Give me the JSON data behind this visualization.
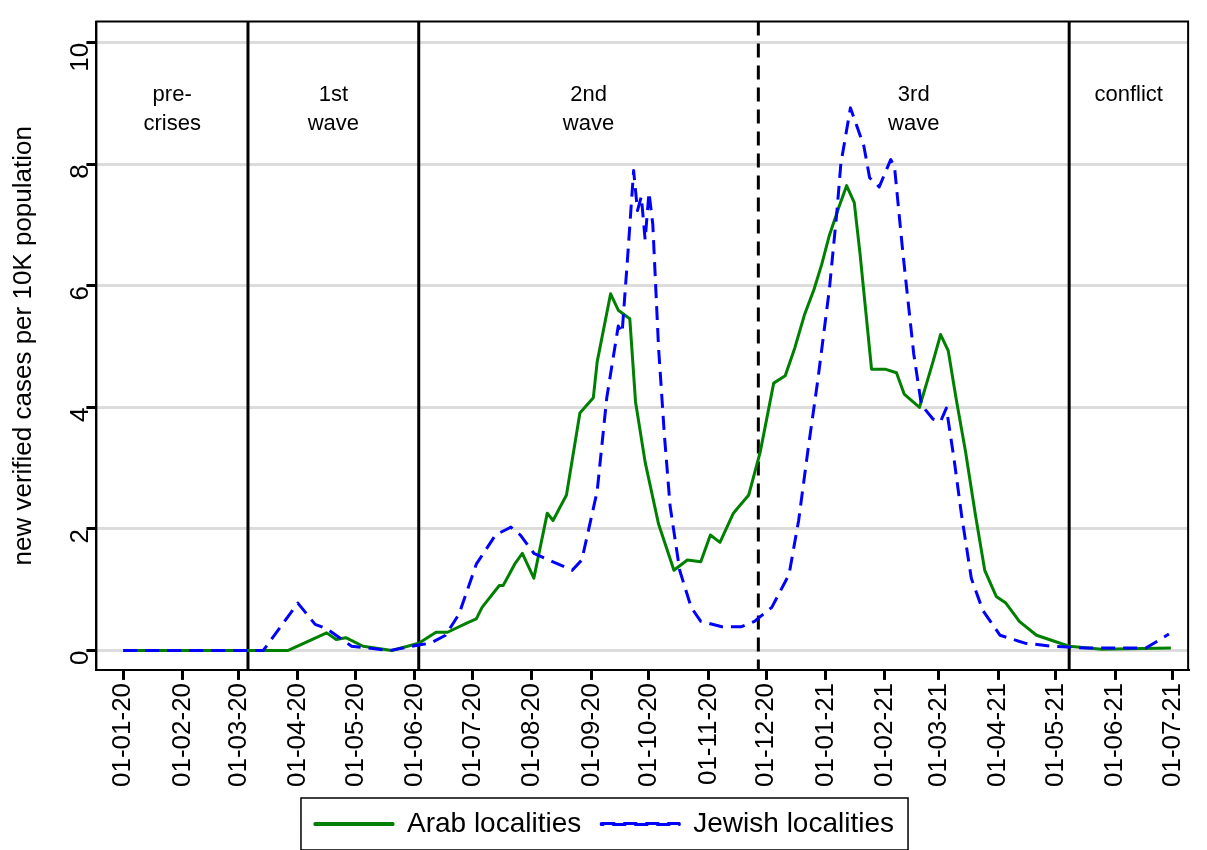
{
  "chart_data": {
    "type": "line",
    "ylabel": "new verified cases per 10K population",
    "xlim": [
      "2019-12-18",
      "2021-07-09"
    ],
    "xticks": [
      {
        "value": "2020-01-01",
        "label": "01-01-20"
      },
      {
        "value": "2020-02-01",
        "label": "01-02-20"
      },
      {
        "value": "2020-03-01",
        "label": "01-03-20"
      },
      {
        "value": "2020-04-01",
        "label": "01-04-20"
      },
      {
        "value": "2020-05-01",
        "label": "01-05-20"
      },
      {
        "value": "2020-06-01",
        "label": "01-06-20"
      },
      {
        "value": "2020-07-01",
        "label": "01-07-20"
      },
      {
        "value": "2020-08-01",
        "label": "01-08-20"
      },
      {
        "value": "2020-09-01",
        "label": "01-09-20"
      },
      {
        "value": "2020-10-01",
        "label": "01-10-20"
      },
      {
        "value": "2020-11-01",
        "label": "01-11-20"
      },
      {
        "value": "2020-12-01",
        "label": "01-12-20"
      },
      {
        "value": "2021-01-01",
        "label": "01-01-21"
      },
      {
        "value": "2021-02-01",
        "label": "01-02-21"
      },
      {
        "value": "2021-03-01",
        "label": "01-03-21"
      },
      {
        "value": "2021-04-01",
        "label": "01-04-21"
      },
      {
        "value": "2021-05-01",
        "label": "01-05-21"
      },
      {
        "value": "2021-06-01",
        "label": "01-06-21"
      },
      {
        "value": "2021-07-01",
        "label": "01-07-21"
      }
    ],
    "ylim": [
      -0.32,
      10.35
    ],
    "yticks": [
      0,
      2,
      4,
      6,
      8,
      10
    ],
    "grid": "y",
    "legend": "bottom",
    "marker": "none",
    "series": [
      {
        "name": "Arab localities",
        "color": "#008000",
        "line_style": "solid",
        "x": [
          "2020-01-01",
          "2020-03-27",
          "2020-04-16",
          "2020-04-21",
          "2020-04-26",
          "2020-05-05",
          "2020-05-20",
          "2020-06-03",
          "2020-06-12",
          "2020-06-18",
          "2020-06-28",
          "2020-07-03",
          "2020-07-06",
          "2020-07-15",
          "2020-07-17",
          "2020-07-23",
          "2020-07-27",
          "2020-08-02",
          "2020-08-09",
          "2020-08-12",
          "2020-08-19",
          "2020-08-26",
          "2020-09-02",
          "2020-09-04",
          "2020-09-11",
          "2020-09-15",
          "2020-09-21",
          "2020-09-24",
          "2020-09-29",
          "2020-10-06",
          "2020-10-14",
          "2020-10-21",
          "2020-10-28",
          "2020-11-02",
          "2020-11-07",
          "2020-11-14",
          "2020-11-22",
          "2020-11-28",
          "2020-12-05",
          "2020-12-11",
          "2020-12-16",
          "2020-12-21",
          "2020-12-26",
          "2020-12-30",
          "2021-01-03",
          "2021-01-08",
          "2021-01-12",
          "2021-01-16",
          "2021-01-19",
          "2021-01-25",
          "2021-02-01",
          "2021-02-07",
          "2021-02-11",
          "2021-02-19",
          "2021-02-26",
          "2021-03-02",
          "2021-03-06",
          "2021-03-10",
          "2021-03-15",
          "2021-03-20",
          "2021-03-25",
          "2021-03-31",
          "2021-04-05",
          "2021-04-12",
          "2021-04-21",
          "2021-05-08",
          "2021-05-25",
          "2021-06-30"
        ],
        "values": [
          0,
          0,
          0.29,
          0.18,
          0.21,
          0.07,
          0,
          0.12,
          0.3,
          0.3,
          0.45,
          0.52,
          0.71,
          1.07,
          1.07,
          1.42,
          1.6,
          1.19,
          2.26,
          2.14,
          2.56,
          3.91,
          4.16,
          4.75,
          5.87,
          5.6,
          5.46,
          4.09,
          3.1,
          2.08,
          1.32,
          1.49,
          1.46,
          1.9,
          1.78,
          2.26,
          2.56,
          3.27,
          4.4,
          4.52,
          4.98,
          5.52,
          5.94,
          6.35,
          6.83,
          7.3,
          7.65,
          7.37,
          6.53,
          4.63,
          4.63,
          4.57,
          4.22,
          4.0,
          4.75,
          5.2,
          4.93,
          4.16,
          3.27,
          2.26,
          1.32,
          0.89,
          0.78,
          0.48,
          0.25,
          0.07,
          0.02,
          0.04
        ]
      },
      {
        "name": "Jewish localities",
        "color": "#0000ff",
        "line_style": "dashed",
        "x": [
          "2020-01-01",
          "2020-03-14",
          "2020-04-01",
          "2020-04-10",
          "2020-04-16",
          "2020-04-29",
          "2020-05-19",
          "2020-06-03",
          "2020-06-09",
          "2020-06-17",
          "2020-06-24",
          "2020-07-03",
          "2020-07-13",
          "2020-07-21",
          "2020-07-26",
          "2020-08-02",
          "2020-08-12",
          "2020-08-22",
          "2020-08-27",
          "2020-09-04",
          "2020-09-09",
          "2020-09-15",
          "2020-09-17",
          "2020-09-20",
          "2020-09-23",
          "2020-09-25",
          "2020-09-27",
          "2020-09-29",
          "2020-10-01",
          "2020-10-03",
          "2020-10-06",
          "2020-10-09",
          "2020-10-12",
          "2020-10-17",
          "2020-10-23",
          "2020-10-28",
          "2020-11-08",
          "2020-11-18",
          "2020-11-25",
          "2020-12-04",
          "2020-12-13",
          "2020-12-18",
          "2020-12-23",
          "2020-12-28",
          "2021-01-03",
          "2021-01-07",
          "2021-01-09",
          "2021-01-14",
          "2021-01-21",
          "2021-01-24",
          "2021-01-29",
          "2021-02-04",
          "2021-02-06",
          "2021-02-10",
          "2021-02-12",
          "2021-02-16",
          "2021-02-20",
          "2021-02-26",
          "2021-03-02",
          "2021-03-05",
          "2021-03-09",
          "2021-03-13",
          "2021-03-18",
          "2021-03-24",
          "2021-04-02",
          "2021-04-15",
          "2021-04-29",
          "2021-05-17",
          "2021-06-17",
          "2021-06-29"
        ],
        "values": [
          0,
          0,
          0.78,
          0.43,
          0.36,
          0.07,
          0,
          0.09,
          0.12,
          0.25,
          0.6,
          1.42,
          1.9,
          2.03,
          1.9,
          1.6,
          1.46,
          1.32,
          1.49,
          2.62,
          4.16,
          5.34,
          5.23,
          6.53,
          7.9,
          7.24,
          7.47,
          6.76,
          7.54,
          7.01,
          4.98,
          3.56,
          2.38,
          1.32,
          0.71,
          0.48,
          0.39,
          0.39,
          0.48,
          0.71,
          1.25,
          2.14,
          3.33,
          4.45,
          5.94,
          7.24,
          8.01,
          8.93,
          8.3,
          7.78,
          7.63,
          8.08,
          7.95,
          6.65,
          6.05,
          4.88,
          4.04,
          3.81,
          3.77,
          3.99,
          3.15,
          2.21,
          1.19,
          0.66,
          0.25,
          0.12,
          0.07,
          0.04,
          0.04,
          0.27
        ]
      }
    ],
    "ref_lines": [
      {
        "axis": "x",
        "value": "2020-03-06",
        "line_style": "solid",
        "color": "#000000"
      },
      {
        "axis": "x",
        "value": "2020-06-03",
        "line_style": "solid",
        "color": "#000000"
      },
      {
        "axis": "x",
        "value": "2020-11-27",
        "line_style": "dashed",
        "color": "#000000"
      },
      {
        "axis": "x",
        "value": "2021-05-08",
        "line_style": "solid",
        "color": "#000000"
      }
    ],
    "annotations": [
      "pre-\ncrises",
      "1st\nwave",
      "2nd\nwave",
      "3rd\nwave",
      "conflict"
    ]
  }
}
